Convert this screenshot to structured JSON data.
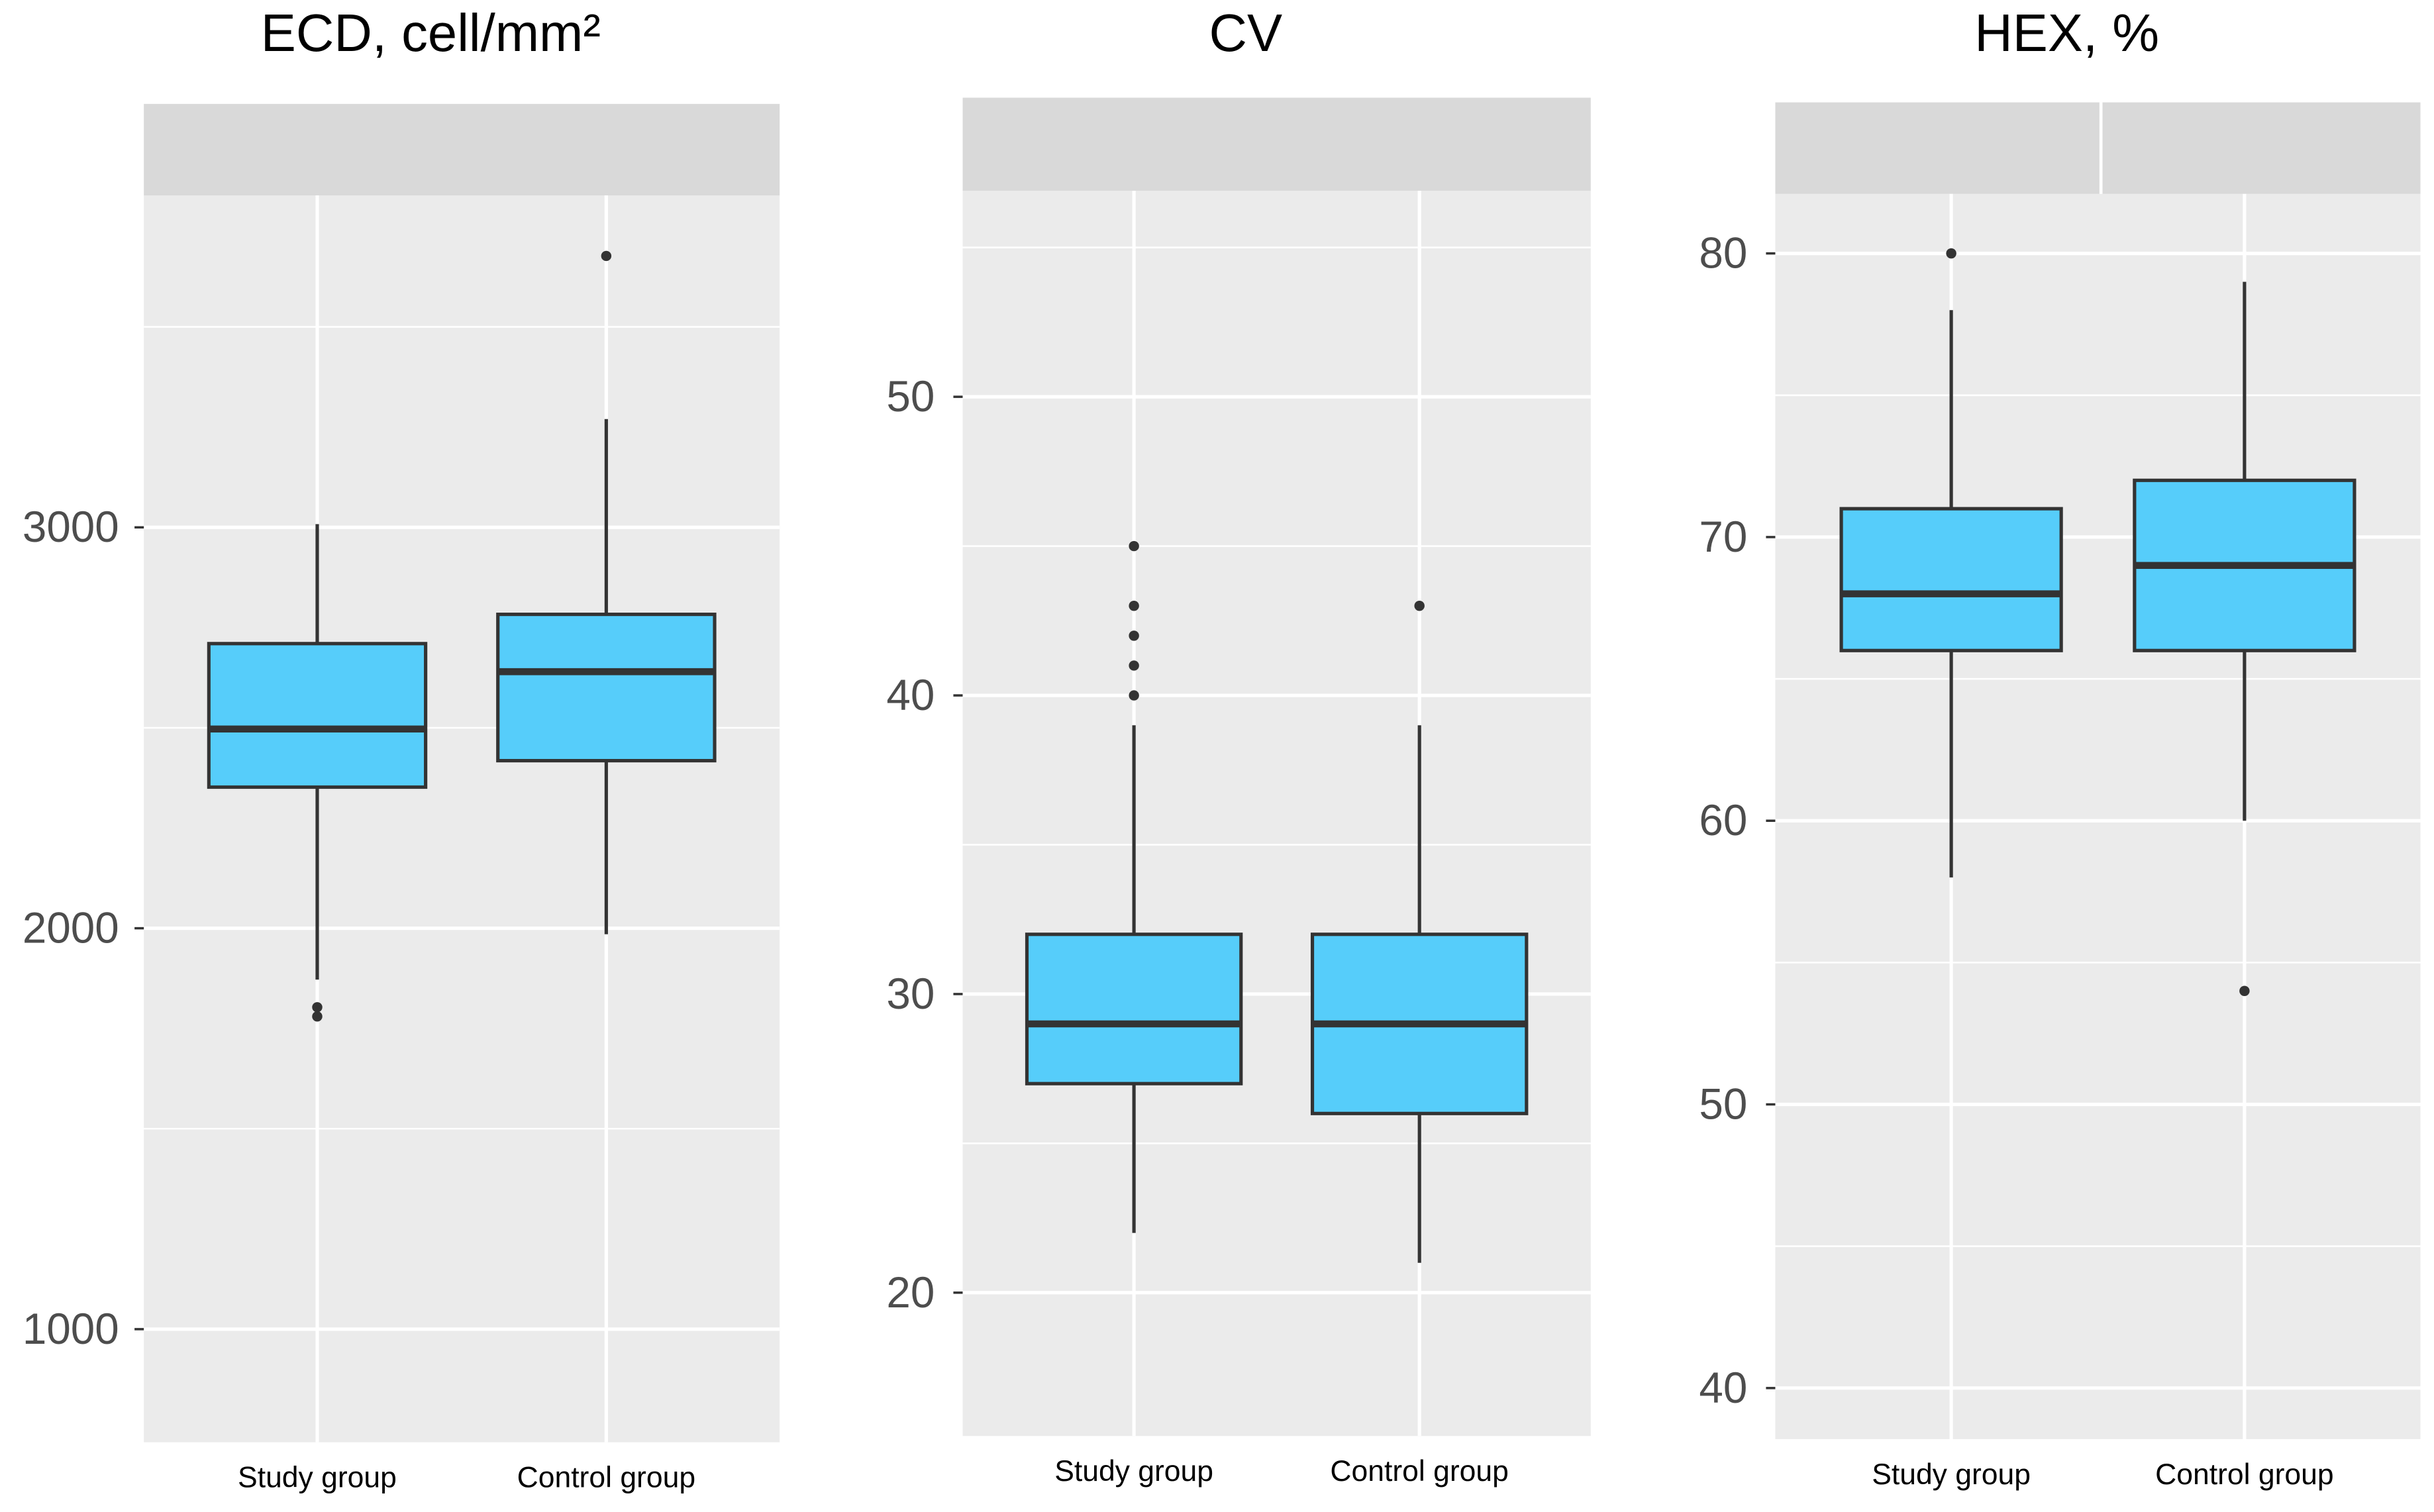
{
  "chart_data": [
    {
      "type": "box",
      "title": "ECD, cell/mm²",
      "categories": [
        "Study group",
        "Control group"
      ],
      "color": "#56cdfa",
      "ylim": [
        718,
        3828
      ],
      "yticks": [
        1000,
        2000,
        3000
      ],
      "grid": true,
      "boxes": [
        {
          "min": 1872,
          "q1": 2352,
          "median": 2497,
          "q3": 2710,
          "max": 3008,
          "outliers": [
            1803,
            1780
          ]
        },
        {
          "min": 1985,
          "q1": 2418,
          "median": 2640,
          "q3": 2783,
          "max": 3270,
          "outliers": [
            3677
          ]
        }
      ]
    },
    {
      "type": "box",
      "title": "CV",
      "categories": [
        "Study group",
        "Control group"
      ],
      "color": "#56cdfa",
      "ylim": [
        15.2,
        56.9
      ],
      "yticks": [
        20,
        30,
        40,
        50
      ],
      "grid": true,
      "boxes": [
        {
          "min": 22,
          "q1": 27,
          "median": 29,
          "q3": 32,
          "max": 39,
          "outliers": [
            40,
            41,
            42,
            43,
            45
          ]
        },
        {
          "min": 21,
          "q1": 26,
          "median": 29,
          "q3": 32,
          "max": 39,
          "outliers": [
            43
          ]
        }
      ]
    },
    {
      "type": "box",
      "title": "HEX, %",
      "categories": [
        "Study group",
        "Control group"
      ],
      "color": "#56cdfa",
      "ylim": [
        38.2,
        82.1
      ],
      "yticks": [
        40,
        50,
        60,
        70,
        80
      ],
      "grid": true,
      "boxes": [
        {
          "min": 58,
          "q1": 66,
          "median": 68,
          "q3": 71,
          "max": 78,
          "outliers": [
            80
          ]
        },
        {
          "min": 60,
          "q1": 66,
          "median": 69,
          "q3": 72,
          "max": 79,
          "outliers": [
            54
          ]
        }
      ]
    }
  ]
}
